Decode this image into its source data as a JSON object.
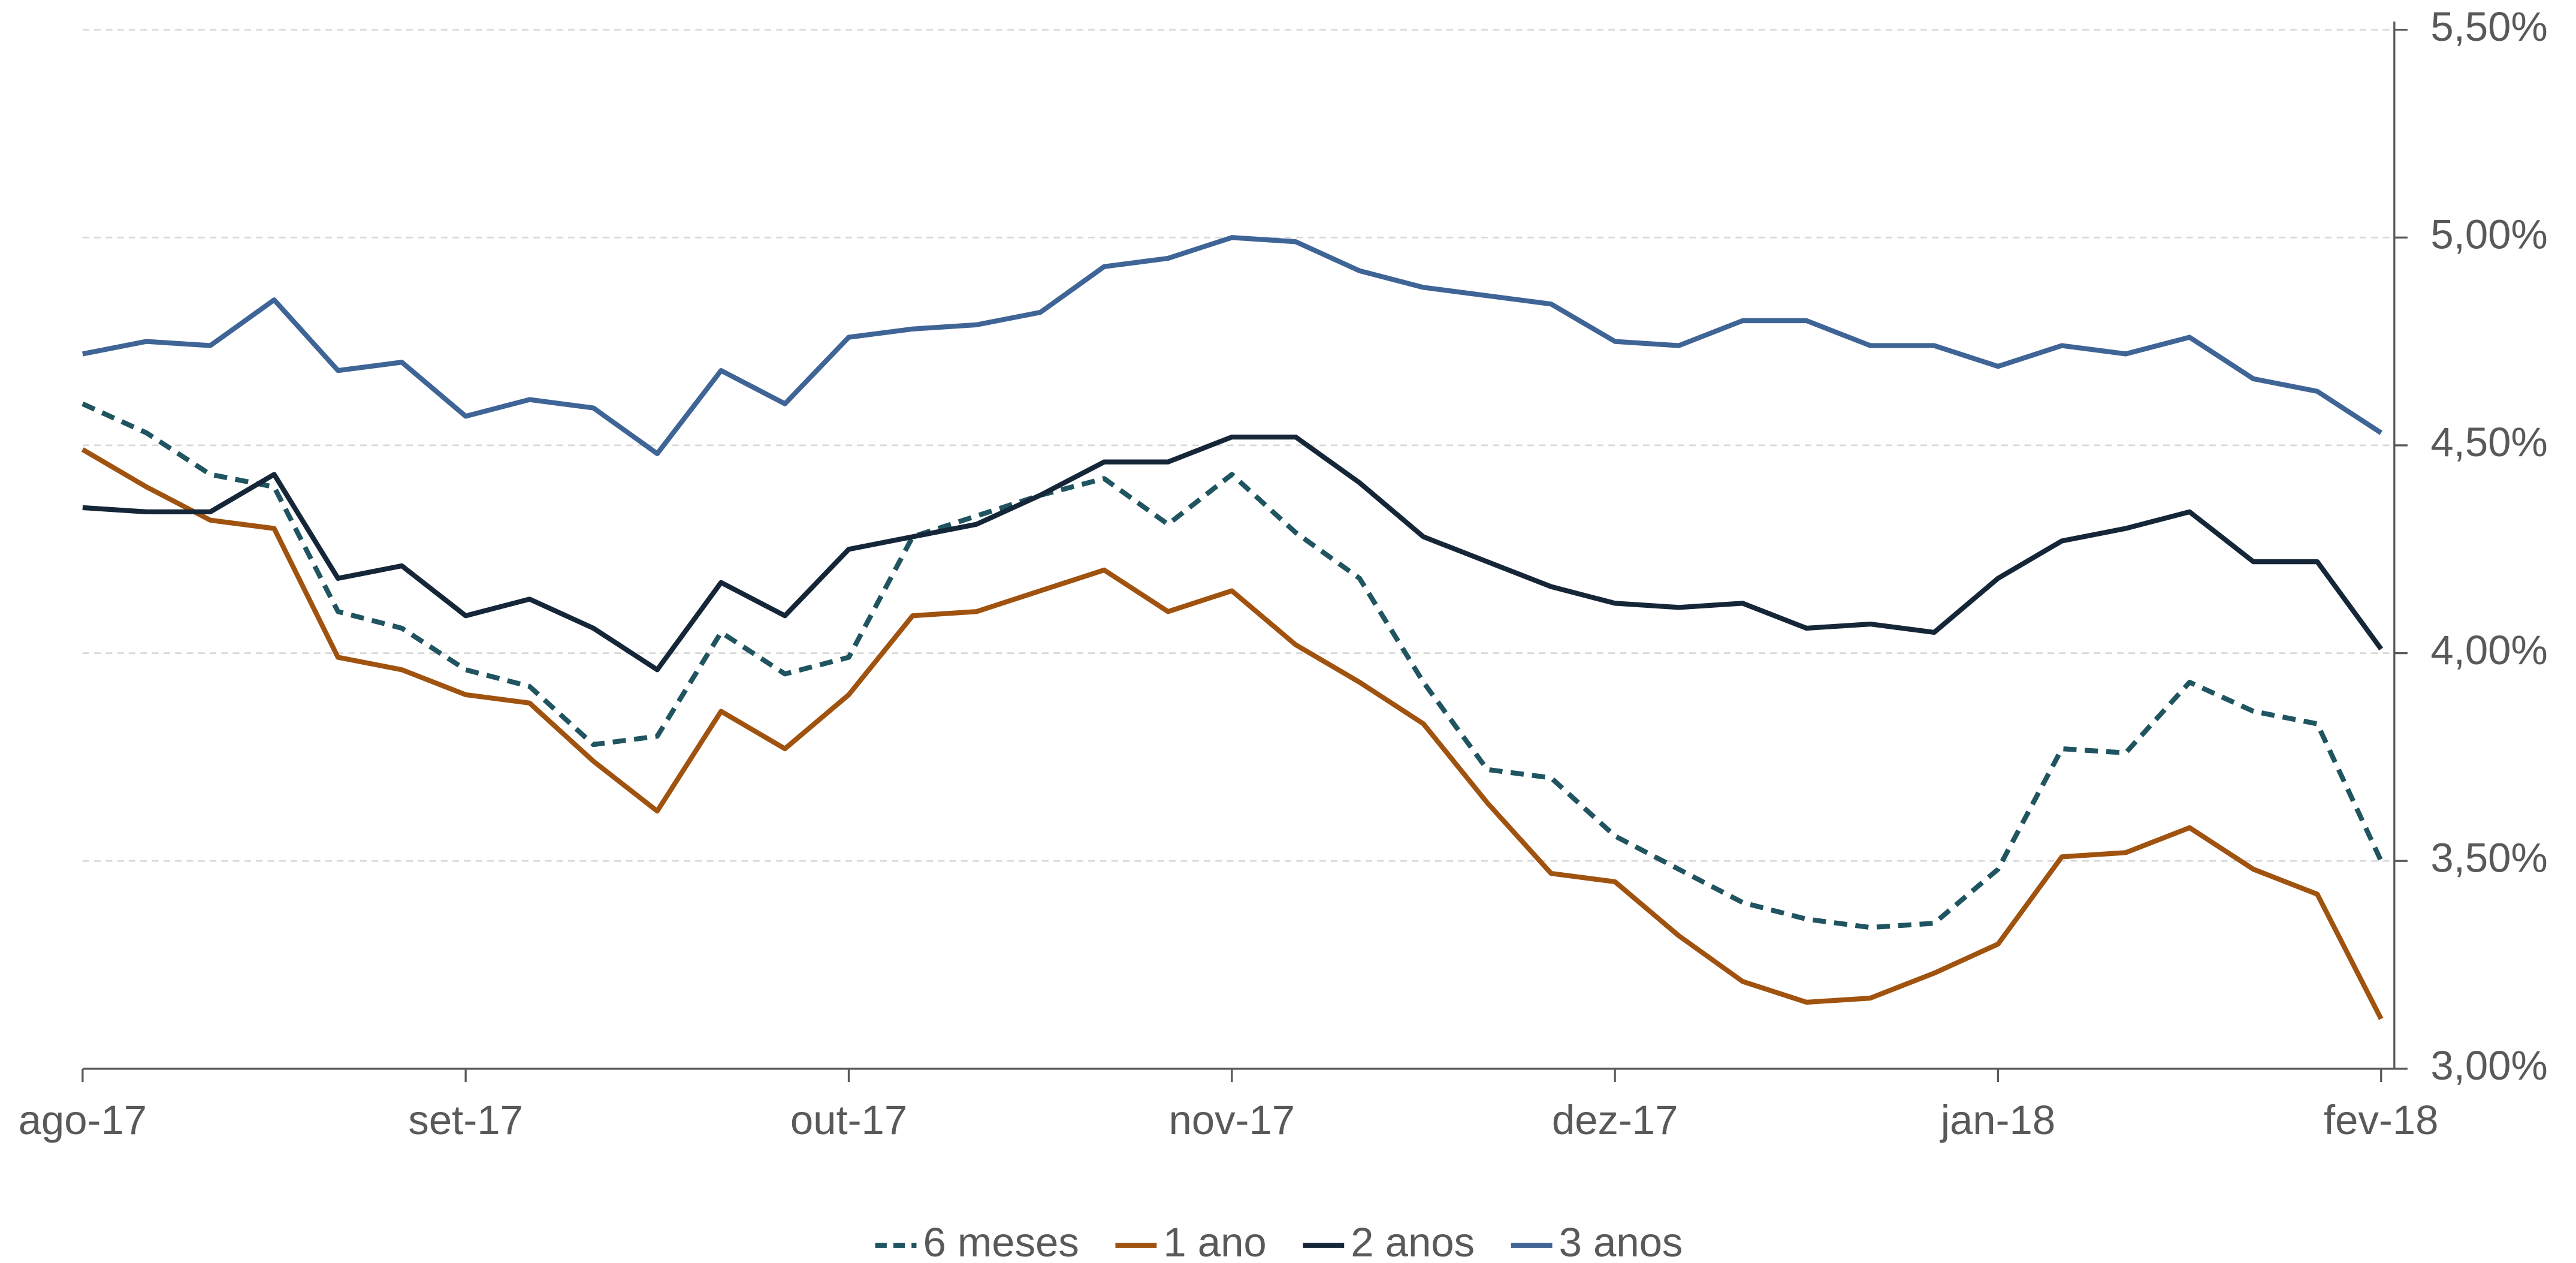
{
  "chart_data": {
    "type": "line",
    "categories": [
      "ago-17",
      null,
      null,
      null,
      null,
      null,
      "set-17",
      null,
      null,
      null,
      null,
      null,
      "out-17",
      null,
      null,
      null,
      null,
      null,
      "nov-17",
      null,
      null,
      null,
      null,
      null,
      "dez-17",
      null,
      null,
      null,
      null,
      null,
      "jan-18",
      null,
      null,
      null,
      null,
      null,
      "fev-18"
    ],
    "series": [
      {
        "name": "6 meses",
        "color": "#1f5460",
        "dashed": true,
        "values": [
          4.6,
          4.53,
          4.43,
          4.4,
          4.1,
          4.06,
          3.96,
          3.92,
          3.78,
          3.8,
          4.05,
          3.95,
          3.99,
          4.28,
          4.33,
          4.38,
          4.42,
          4.31,
          4.43,
          4.29,
          4.18,
          3.93,
          3.72,
          3.7,
          3.56,
          3.48,
          3.4,
          3.36,
          3.34,
          3.35,
          3.48,
          3.77,
          3.76,
          3.93,
          3.86,
          3.83,
          3.5
        ]
      },
      {
        "name": "1 ano",
        "color": "#a0520f",
        "dashed": false,
        "values": [
          4.49,
          4.4,
          4.32,
          4.3,
          3.99,
          3.96,
          3.9,
          3.88,
          3.74,
          3.62,
          3.86,
          3.77,
          3.9,
          4.09,
          4.1,
          4.15,
          4.2,
          4.1,
          4.15,
          4.02,
          3.93,
          3.83,
          3.64,
          3.47,
          3.45,
          3.32,
          3.21,
          3.16,
          3.17,
          3.23,
          3.3,
          3.51,
          3.52,
          3.58,
          3.48,
          3.42,
          3.12
        ]
      },
      {
        "name": "2 anos",
        "color": "#152638",
        "dashed": false,
        "values": [
          4.35,
          4.34,
          4.34,
          4.43,
          4.18,
          4.21,
          4.09,
          4.13,
          4.06,
          3.96,
          4.17,
          4.09,
          4.25,
          4.28,
          4.31,
          4.38,
          4.46,
          4.46,
          4.52,
          4.52,
          4.41,
          4.28,
          4.22,
          4.16,
          4.12,
          4.11,
          4.12,
          4.06,
          4.07,
          4.05,
          4.18,
          4.27,
          4.3,
          4.34,
          4.22,
          4.22,
          4.01
        ]
      },
      {
        "name": "3 anos",
        "color": "#3f6496",
        "dashed": false,
        "values": [
          4.72,
          4.75,
          4.74,
          4.85,
          4.68,
          4.7,
          4.57,
          4.61,
          4.59,
          4.48,
          4.68,
          4.6,
          4.76,
          4.78,
          4.79,
          4.82,
          4.93,
          4.95,
          5.0,
          4.99,
          4.92,
          4.88,
          4.86,
          4.84,
          4.75,
          4.74,
          4.8,
          4.8,
          4.74,
          4.74,
          4.69,
          4.74,
          4.72,
          4.76,
          4.66,
          4.63,
          4.53
        ]
      }
    ],
    "ylim": [
      3.0,
      5.5
    ],
    "yticks": [
      {
        "value": 3.0,
        "label": "3,00%"
      },
      {
        "value": 3.5,
        "label": "3,50%"
      },
      {
        "value": 4.0,
        "label": "4,00%"
      },
      {
        "value": 4.5,
        "label": "4,50%"
      },
      {
        "value": 5.0,
        "label": "5,00%"
      },
      {
        "value": 5.5,
        "label": "5,50%"
      }
    ],
    "grid": true,
    "legend": "bottom"
  }
}
